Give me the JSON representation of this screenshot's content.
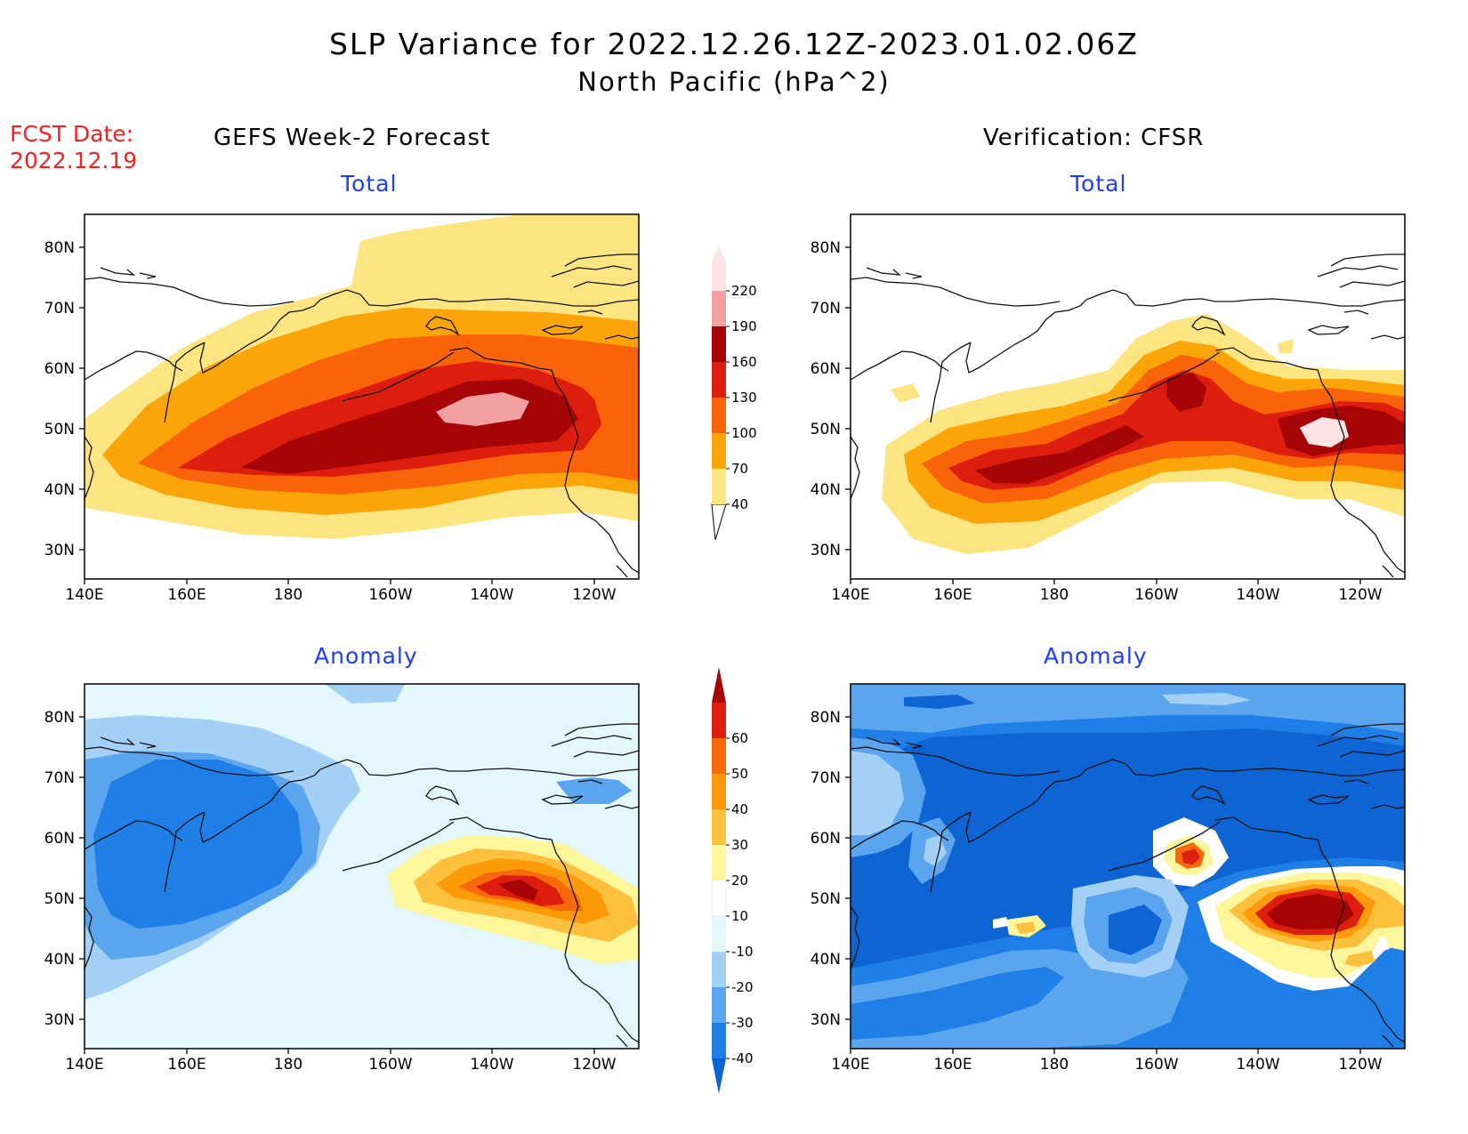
{
  "title": {
    "line1": "SLP Variance for 2022.12.26.12Z-2023.01.02.06Z",
    "line2": "North Pacific (hPa^2)"
  },
  "forecast_date": {
    "label": "FCST Date:",
    "value": "2022.12.19"
  },
  "columns": {
    "left": "GEFS Week-2 Forecast",
    "right": "Verification: CFSR"
  },
  "panels": {
    "total_label": "Total",
    "anomaly_label": "Anomaly"
  },
  "axes": {
    "lat_ticks": [
      "80N",
      "70N",
      "60N",
      "50N",
      "40N",
      "30N"
    ],
    "lon_ticks": [
      "140E",
      "160E",
      "180",
      "160W",
      "140W",
      "120W"
    ]
  },
  "colorbars": {
    "total": {
      "labels": [
        "40",
        "70",
        "100",
        "130",
        "160",
        "190",
        "220"
      ],
      "colors": [
        "#fde682",
        "#fba50b",
        "#f96309",
        "#dd1e0e",
        "#a50506",
        "#f2a0a2",
        "#fde3e3"
      ]
    },
    "anomaly": {
      "labels": [
        "-40",
        "-30",
        "-20",
        "-10",
        "10",
        "20",
        "30",
        "40",
        "50",
        "60"
      ],
      "colors": [
        "#0d64d2",
        "#1f7fe6",
        "#5aa5ee",
        "#a5d0f6",
        "#e3f7fc",
        "#ffffff",
        "#fef69a",
        "#fdc03c",
        "#fc9a0a",
        "#f76a0b",
        "#dd1e0e",
        "#a50506"
      ]
    }
  }
}
